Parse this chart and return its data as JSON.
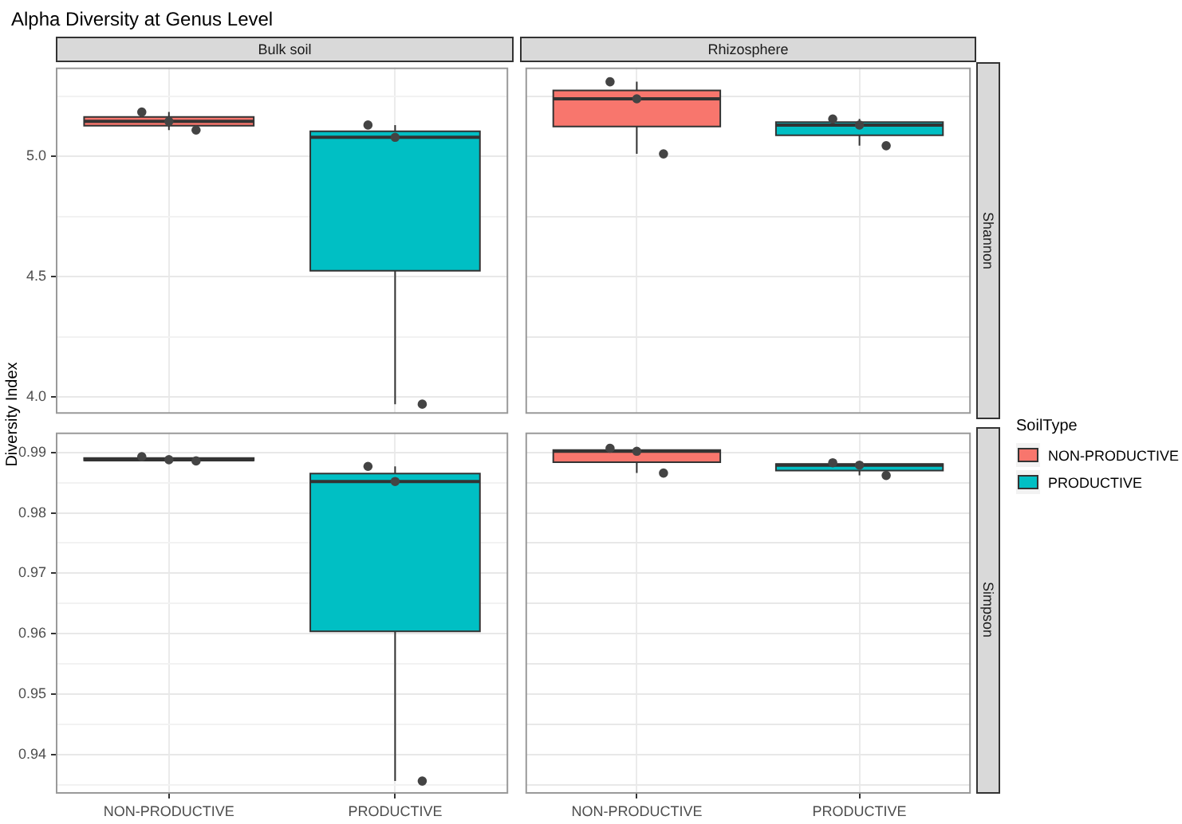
{
  "chart_data": [
    {
      "type": "box",
      "title": "Alpha Diversity at Genus Level",
      "subtitle": "Bulk soil",
      "ylabel": "Diversity Index",
      "categories": [
        "NON-PRODUCTIVE",
        "PRODUCTIVE"
      ],
      "ylim": [
        3.93,
        5.37
      ],
      "yticks": [
        {
          "value": 4,
          "label": "4.0"
        },
        {
          "value": 4.25,
          "label": null
        },
        {
          "value": 4.5,
          "label": "4.5"
        },
        {
          "value": 4.75,
          "label": null
        },
        {
          "value": 5,
          "label": "5.0"
        },
        {
          "value": 5.25,
          "label": null
        }
      ],
      "grid": true,
      "tick_labels": "y",
      "series": [
        {
          "color": "#f8766d",
          "boxes": [
            {
              "low": 5.11,
              "q1": 5.128,
              "median": 5.146,
              "q3": 5.165,
              "high": 5.185
            },
            null
          ]
        },
        {
          "color": "#00bfc4",
          "boxes": [
            null,
            {
              "low": 3.97,
              "q1": 4.525,
              "median": 5.08,
              "q3": 5.105,
              "high": 5.131
            }
          ]
        },
        {
          "type": "scatter",
          "color": "#444444",
          "x": [
            "NON-PRODUCTIVE",
            "NON-PRODUCTIVE",
            "NON-PRODUCTIVE",
            "PRODUCTIVE",
            "PRODUCTIVE",
            "PRODUCTIVE"
          ],
          "values": [
            5.185,
            5.146,
            5.11,
            5.131,
            5.08,
            3.97
          ]
        }
      ]
    },
    {
      "type": "box",
      "subtitle": "Rhizosphere",
      "y2label": "Shannon",
      "legend_title": "SoilType",
      "legend": "right",
      "categories": [
        "NON-PRODUCTIVE",
        "PRODUCTIVE"
      ],
      "ylim": [
        3.93,
        5.37
      ],
      "yticks": [
        {
          "value": 4,
          "label": null
        },
        {
          "value": 4.25,
          "label": null
        },
        {
          "value": 4.5,
          "label": null
        },
        {
          "value": 4.75,
          "label": null
        },
        {
          "value": 5,
          "label": null
        },
        {
          "value": 5.25,
          "label": null
        }
      ],
      "grid": true,
      "tick_labels": false,
      "series": [
        {
          "name": "NON-PRODUCTIVE",
          "color": "#f8766d",
          "boxes": [
            {
              "low": 5.011,
              "q1": 5.125,
              "median": 5.24,
              "q3": 5.275,
              "high": 5.311
            },
            null
          ]
        },
        {
          "name": "PRODUCTIVE",
          "color": "#00bfc4",
          "boxes": [
            null,
            {
              "low": 5.045,
              "q1": 5.088,
              "median": 5.131,
              "q3": 5.143,
              "high": 5.156
            }
          ]
        },
        {
          "type": "scatter",
          "color": "#444444",
          "x": [
            "NON-PRODUCTIVE",
            "NON-PRODUCTIVE",
            "NON-PRODUCTIVE",
            "PRODUCTIVE",
            "PRODUCTIVE",
            "PRODUCTIVE"
          ],
          "values": [
            5.311,
            5.24,
            5.011,
            5.156,
            5.131,
            5.045
          ]
        }
      ]
    },
    {
      "type": "box",
      "categories": [
        "NON-PRODUCTIVE",
        "PRODUCTIVE"
      ],
      "ylim": [
        0.9335,
        0.9933
      ],
      "yticks": [
        {
          "value": 0.935,
          "label": null
        },
        {
          "value": 0.94,
          "label": "0.94"
        },
        {
          "value": 0.945,
          "label": null
        },
        {
          "value": 0.95,
          "label": "0.95"
        },
        {
          "value": 0.955,
          "label": null
        },
        {
          "value": 0.96,
          "label": "0.96"
        },
        {
          "value": 0.965,
          "label": null
        },
        {
          "value": 0.97,
          "label": "0.97"
        },
        {
          "value": 0.975,
          "label": null
        },
        {
          "value": 0.98,
          "label": "0.98"
        },
        {
          "value": 0.985,
          "label": null
        },
        {
          "value": 0.99,
          "label": "0.99"
        }
      ],
      "grid": true,
      "series": [
        {
          "color": "#f8766d",
          "boxes": [
            {
              "low": 0.9886,
              "q1": 0.9887,
              "median": 0.9888,
              "q3": 0.9891,
              "high": 0.9893
            },
            null
          ]
        },
        {
          "color": "#00bfc4",
          "boxes": [
            null,
            {
              "low": 0.9356,
              "q1": 0.9604,
              "median": 0.9852,
              "q3": 0.9865,
              "high": 0.9877
            }
          ]
        },
        {
          "type": "scatter",
          "color": "#444444",
          "x": [
            "NON-PRODUCTIVE",
            "NON-PRODUCTIVE",
            "NON-PRODUCTIVE",
            "PRODUCTIVE",
            "PRODUCTIVE",
            "PRODUCTIVE"
          ],
          "values": [
            0.9893,
            0.9888,
            0.9886,
            0.9877,
            0.9852,
            0.9356
          ]
        }
      ]
    },
    {
      "type": "box",
      "y2label": "Simpson",
      "categories": [
        "NON-PRODUCTIVE",
        "PRODUCTIVE"
      ],
      "ylim": [
        0.9335,
        0.9933
      ],
      "yticks": [
        {
          "value": 0.935,
          "label": null
        },
        {
          "value": 0.94,
          "label": null
        },
        {
          "value": 0.945,
          "label": null
        },
        {
          "value": 0.95,
          "label": null
        },
        {
          "value": 0.955,
          "label": null
        },
        {
          "value": 0.96,
          "label": null
        },
        {
          "value": 0.965,
          "label": null
        },
        {
          "value": 0.97,
          "label": null
        },
        {
          "value": 0.975,
          "label": null
        },
        {
          "value": 0.98,
          "label": null
        },
        {
          "value": 0.985,
          "label": null
        },
        {
          "value": 0.99,
          "label": null
        }
      ],
      "grid": true,
      "tick_labels": "x",
      "series": [
        {
          "color": "#f8766d",
          "boxes": [
            {
              "low": 0.9866,
              "q1": 0.9884,
              "median": 0.9902,
              "q3": 0.9904,
              "high": 0.9907
            },
            null
          ]
        },
        {
          "color": "#00bfc4",
          "boxes": [
            null,
            {
              "low": 0.9862,
              "q1": 0.987,
              "median": 0.9879,
              "q3": 0.9881,
              "high": 0.9883
            }
          ]
        },
        {
          "type": "scatter",
          "color": "#444444",
          "x": [
            "NON-PRODUCTIVE",
            "NON-PRODUCTIVE",
            "NON-PRODUCTIVE",
            "PRODUCTIVE",
            "PRODUCTIVE",
            "PRODUCTIVE"
          ],
          "values": [
            0.9907,
            0.9902,
            0.9866,
            0.9883,
            0.9879,
            0.9862
          ]
        }
      ]
    }
  ]
}
